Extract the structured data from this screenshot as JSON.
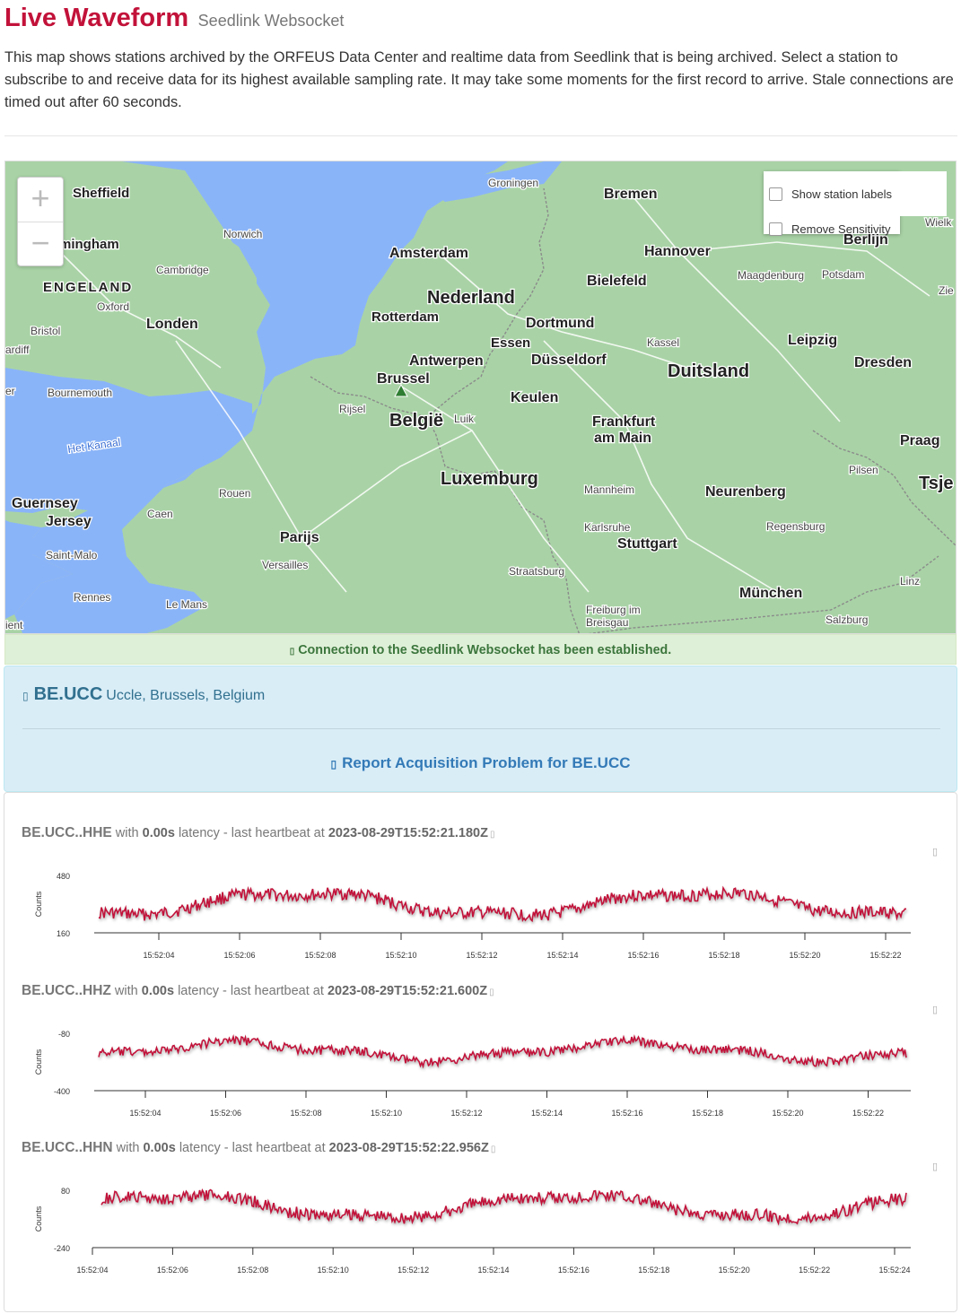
{
  "header": {
    "title": "Live Waveform",
    "subtitle": "Seedlink Websocket",
    "intro": "This map shows stations archived by the ORFEUS Data Center and realtime data from Seedlink that is being archived. Select a station to subscribe to and receive data for its highest available sampling rate. It may take some moments for the first record to arrive. Stale connections are timed out after 60 seconds."
  },
  "map": {
    "zoom_in": "+",
    "zoom_out": "−",
    "controls": {
      "show_labels": "Show station labels",
      "remove_sensitivity": "Remove Sensitivity",
      "show_labels_checked": false,
      "remove_sensitivity_checked": false
    },
    "colors": {
      "land": "#a9d3a6",
      "sea": "#8ab4f8",
      "border": "#8b8b8b",
      "station": "#2e7d32"
    },
    "labels": [
      {
        "text": "Sheffield",
        "cls": "city"
      },
      {
        "text": "mingham",
        "cls": "city"
      },
      {
        "text": "Norwich",
        "cls": "town"
      },
      {
        "text": "Cambridge",
        "cls": "town"
      },
      {
        "text": "ENGELAND",
        "cls": "country-uk"
      },
      {
        "text": "Oxford",
        "cls": "town"
      },
      {
        "text": "Londen",
        "cls": "city"
      },
      {
        "text": "Bristol",
        "cls": "town"
      },
      {
        "text": "ardiff",
        "cls": "town"
      },
      {
        "text": "Bournemouth",
        "cls": "town"
      },
      {
        "text": "er",
        "cls": "town"
      },
      {
        "text": "Het Kanaal",
        "cls": "water"
      },
      {
        "text": "Guernsey",
        "cls": "city"
      },
      {
        "text": "Jersey",
        "cls": "city"
      },
      {
        "text": "Saint-Malo",
        "cls": "town"
      },
      {
        "text": "Caen",
        "cls": "town"
      },
      {
        "text": "Rouen",
        "cls": "town"
      },
      {
        "text": "Rennes",
        "cls": "town"
      },
      {
        "text": "Le Mans",
        "cls": "town"
      },
      {
        "text": "ient",
        "cls": "town"
      },
      {
        "text": "Parijs",
        "cls": "city"
      },
      {
        "text": "Versailles",
        "cls": "town"
      },
      {
        "text": "Groningen",
        "cls": "town"
      },
      {
        "text": "Amsterdam",
        "cls": "city"
      },
      {
        "text": "Nederland",
        "cls": "country"
      },
      {
        "text": "Rotterdam",
        "cls": "city"
      },
      {
        "text": "Antwerpen",
        "cls": "city"
      },
      {
        "text": "Brussel",
        "cls": "city"
      },
      {
        "text": "Rijsel",
        "cls": "town"
      },
      {
        "text": "België",
        "cls": "country"
      },
      {
        "text": "Luik",
        "cls": "town"
      },
      {
        "text": "Luxemburg",
        "cls": "country"
      },
      {
        "text": "Bremen",
        "cls": "city"
      },
      {
        "text": "Hannover",
        "cls": "city"
      },
      {
        "text": "Bielefeld",
        "cls": "city"
      },
      {
        "text": "Dortmund",
        "cls": "city"
      },
      {
        "text": "Essen",
        "cls": "city"
      },
      {
        "text": "Düsseldorf",
        "cls": "city"
      },
      {
        "text": "Keulen",
        "cls": "city"
      },
      {
        "text": "Kassel",
        "cls": "town"
      },
      {
        "text": "Duitsland",
        "cls": "country"
      },
      {
        "text": "Frankfurt",
        "cls": "city"
      },
      {
        "text": "am Main",
        "cls": "city"
      },
      {
        "text": "Mannheim",
        "cls": "town"
      },
      {
        "text": "Karlsruhe",
        "cls": "town"
      },
      {
        "text": "Stuttgart",
        "cls": "city"
      },
      {
        "text": "Straatsburg",
        "cls": "town"
      },
      {
        "text": "Freiburg im",
        "cls": "town"
      },
      {
        "text": "Breisgau",
        "cls": "town"
      },
      {
        "text": "Neurenberg",
        "cls": "city"
      },
      {
        "text": "Regensburg",
        "cls": "town"
      },
      {
        "text": "München",
        "cls": "city"
      },
      {
        "text": "Salzburg",
        "cls": "town"
      },
      {
        "text": "Linz",
        "cls": "town"
      },
      {
        "text": "Pilsen",
        "cls": "town"
      },
      {
        "text": "Praag",
        "cls": "city"
      },
      {
        "text": "Tsje",
        "cls": "country"
      },
      {
        "text": "Leipzig",
        "cls": "city"
      },
      {
        "text": "Dresden",
        "cls": "city"
      },
      {
        "text": "Maagdenburg",
        "cls": "town"
      },
      {
        "text": "Potsdam",
        "cls": "town"
      },
      {
        "text": "Berlijn",
        "cls": "city"
      },
      {
        "text": "Zie",
        "cls": "town"
      },
      {
        "text": "Wielk",
        "cls": "town"
      }
    ]
  },
  "alert": {
    "icon": "check-icon",
    "text": "Connection to the Seedlink Websocket has been established."
  },
  "station": {
    "icon": "info-icon",
    "code": "BE.UCC",
    "description": "Uccle, Brussels, Belgium",
    "report_icon": "warning-icon",
    "report": "Report Acquisition Problem for BE.UCC"
  },
  "traces": [
    {
      "channel": "BE.UCC..HHE",
      "with": "with",
      "latency": "0.00s",
      "latency_text": "latency - last heartbeat at",
      "heartbeat": "2023-08-29T15:52:21.180Z",
      "ylabel": "Counts",
      "ymax": "480",
      "ymin": "160",
      "ticks": [
        "15:52:04",
        "15:52:06",
        "15:52:08",
        "15:52:10",
        "15:52:12",
        "15:52:14",
        "15:52:16",
        "15:52:18",
        "15:52:20",
        "15:52:22"
      ]
    },
    {
      "channel": "BE.UCC..HHZ",
      "with": "with",
      "latency": "0.00s",
      "latency_text": "latency - last heartbeat at",
      "heartbeat": "2023-08-29T15:52:21.600Z",
      "ylabel": "Counts",
      "ymax": "-80",
      "ymin": "-400",
      "ticks": [
        "15:52:04",
        "15:52:06",
        "15:52:08",
        "15:52:10",
        "15:52:12",
        "15:52:14",
        "15:52:16",
        "15:52:18",
        "15:52:20",
        "15:52:22"
      ]
    },
    {
      "channel": "BE.UCC..HHN",
      "with": "with",
      "latency": "0.00s",
      "latency_text": "latency - last heartbeat at",
      "heartbeat": "2023-08-29T15:52:22.956Z",
      "ylabel": "Counts",
      "ymax": "80",
      "ymin": "-240",
      "ticks": [
        "15:52:04",
        "15:52:06",
        "15:52:08",
        "15:52:10",
        "15:52:12",
        "15:52:14",
        "15:52:16",
        "15:52:18",
        "15:52:20",
        "15:52:22",
        "15:52:24"
      ]
    }
  ],
  "trace_color": "#c2123a"
}
